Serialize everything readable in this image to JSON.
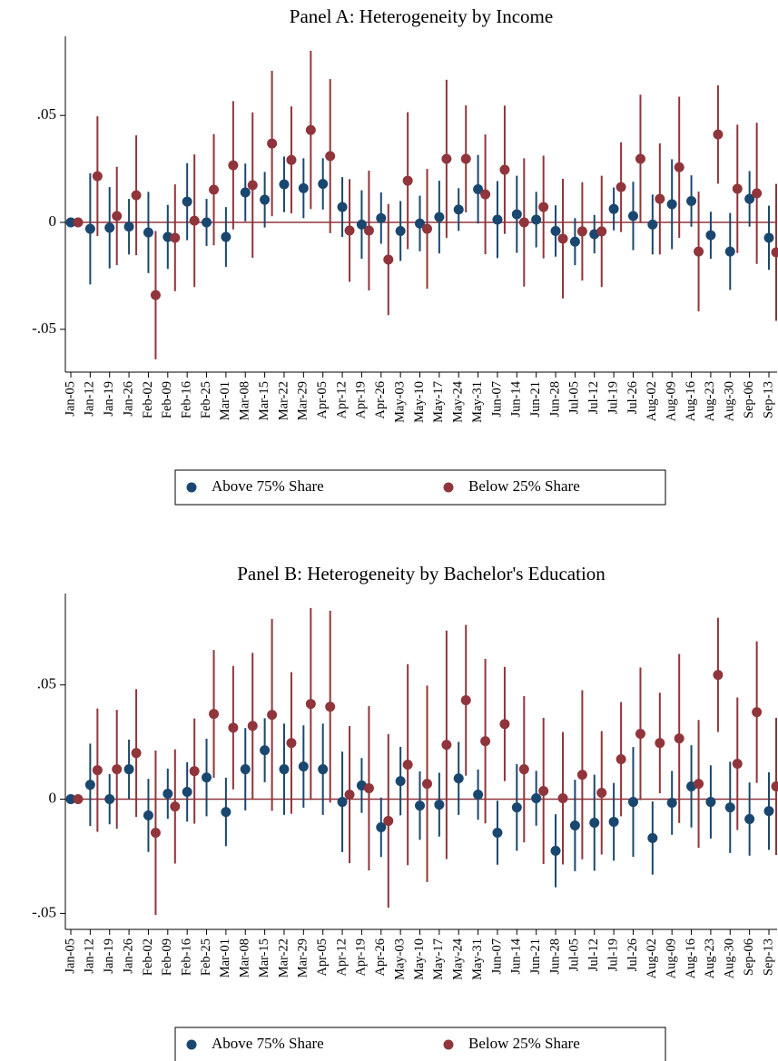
{
  "chart_data": [
    {
      "type": "errorbar",
      "title": "Panel A: Heterogeneity by Income",
      "categories": [
        "Jan-05",
        "Jan-12",
        "Jan-19",
        "Jan-26",
        "Feb-02",
        "Feb-09",
        "Feb-16",
        "Feb-25",
        "Mar-01",
        "Mar-08",
        "Mar-15",
        "Mar-22",
        "Mar-29",
        "Apr-05",
        "Apr-12",
        "Apr-19",
        "Apr-26",
        "May-03",
        "May-10",
        "May-17",
        "May-24",
        "May-31",
        "Jun-07",
        "Jun-14",
        "Jun-21",
        "Jun-28",
        "Jul-05",
        "Jul-12",
        "Jul-19",
        "Jul-26",
        "Aug-02",
        "Aug-09",
        "Aug-16",
        "Aug-23",
        "Aug-30",
        "Sep-06",
        "Sep-13"
      ],
      "series": [
        {
          "name": "Above 75% Share",
          "color": "#1a476f",
          "values": [
            0,
            -0.003,
            -0.0025,
            -0.002,
            -0.0047,
            -0.0068,
            0.0097,
            0,
            -0.0068,
            0.014,
            0.0106,
            0.0178,
            0.016,
            0.018,
            0.0072,
            -0.001,
            0.002,
            -0.004,
            -0.0005,
            0.0025,
            0.006,
            0.0155,
            0.0013,
            0.0038,
            0.0013,
            -0.004,
            -0.009,
            -0.0055,
            0.0063,
            0.003,
            -0.001,
            0.0085,
            0.01,
            -0.006,
            -0.0136,
            0.011,
            -0.0072
          ],
          "errors": [
            0,
            0.026,
            0.019,
            0.013,
            0.019,
            0.015,
            0.018,
            0.011,
            0.014,
            0.0135,
            0.013,
            0.013,
            0.014,
            0.012,
            0.014,
            0.016,
            0.012,
            0.014,
            0.013,
            0.017,
            0.01,
            0.016,
            0.018,
            0.018,
            0.013,
            0.012,
            0.011,
            0.009,
            0.01,
            0.016,
            0.014,
            0.021,
            0.012,
            0.011,
            0.018,
            0.013,
            0.015
          ]
        },
        {
          "name": "Below 25% Share",
          "color": "#90353b",
          "values": [
            0,
            0.0216,
            0.003,
            0.0127,
            -0.034,
            -0.0072,
            0.0008,
            0.0153,
            0.0267,
            0.0174,
            0.0369,
            0.0292,
            0.0432,
            0.031,
            -0.0038,
            -0.0038,
            -0.0174,
            0.0195,
            -0.003,
            0.0297,
            0.0297,
            0.0131,
            0.0246,
            0,
            0.0072,
            -0.0076,
            -0.0042,
            -0.0042,
            0.0165,
            0.0297,
            0.011,
            0.0258,
            -0.0136,
            0.0411,
            0.0157,
            0.0136,
            -0.014
          ],
          "errors": [
            0,
            0.028,
            0.023,
            0.028,
            0.03,
            0.025,
            0.031,
            0.026,
            0.03,
            0.034,
            0.034,
            0.025,
            0.037,
            0.036,
            0.024,
            0.028,
            0.026,
            0.032,
            0.028,
            0.037,
            0.025,
            0.028,
            0.03,
            0.03,
            0.024,
            0.028,
            0.023,
            0.026,
            0.021,
            0.03,
            0.026,
            0.033,
            0.028,
            0.023,
            0.03,
            0.033,
            0.032
          ]
        }
      ],
      "ylim": [
        -0.07,
        0.087
      ],
      "yticks": [
        {
          "value": -0.05,
          "label": "-.05"
        },
        0,
        {
          "value": 0.05,
          "label": ".05"
        }
      ],
      "reference_line": 0,
      "reference_color": "#90353b",
      "grid": false
    },
    {
      "type": "errorbar",
      "title": "Panel B: Heterogeneity by Bachelor's Education",
      "categories": [
        "Jan-05",
        "Jan-12",
        "Jan-19",
        "Jan-26",
        "Feb-02",
        "Feb-09",
        "Feb-16",
        "Feb-25",
        "Mar-01",
        "Mar-08",
        "Mar-15",
        "Mar-22",
        "Mar-29",
        "Apr-05",
        "Apr-12",
        "Apr-19",
        "Apr-26",
        "May-03",
        "May-10",
        "May-17",
        "May-24",
        "May-31",
        "Jun-07",
        "Jun-14",
        "Jun-21",
        "Jun-28",
        "Jul-05",
        "Jul-12",
        "Jul-19",
        "Jul-26",
        "Aug-02",
        "Aug-09",
        "Aug-16",
        "Aug-23",
        "Aug-30",
        "Sep-06",
        "Sep-13"
      ],
      "series": [
        {
          "name": "Above 75% Share",
          "color": "#1a476f",
          "values": [
            0,
            0.0063,
            0,
            0.0131,
            -0.0071,
            0.0024,
            0.0032,
            0.0095,
            -0.0056,
            0.0131,
            0.0214,
            0.0131,
            0.0143,
            0.0131,
            -0.0012,
            0.006,
            -0.0123,
            0.0079,
            -0.0028,
            -0.0024,
            0.0091,
            0.002,
            -0.0147,
            -0.0036,
            0.0004,
            -0.0226,
            -0.0115,
            -0.0103,
            -0.0099,
            -0.0012,
            -0.017,
            -0.0016,
            0.0056,
            -0.0012,
            -0.0036,
            -0.0087,
            -0.0052
          ],
          "errors": [
            0,
            0.018,
            0.011,
            0.013,
            0.016,
            0.011,
            0.013,
            0.017,
            0.015,
            0.018,
            0.014,
            0.02,
            0.018,
            0.02,
            0.022,
            0.012,
            0.013,
            0.015,
            0.015,
            0.014,
            0.016,
            0.011,
            0.014,
            0.019,
            0.012,
            0.016,
            0.02,
            0.021,
            0.017,
            0.024,
            0.016,
            0.014,
            0.018,
            0.016,
            0.02,
            0.016,
            0.017
          ]
        },
        {
          "name": "Below 25% Share",
          "color": "#90353b",
          "values": [
            0,
            0.0127,
            0.0131,
            0.0202,
            -0.0147,
            -0.0032,
            0.0123,
            0.0373,
            0.0313,
            0.0321,
            0.0369,
            0.0246,
            0.0417,
            0.0405,
            0.002,
            0.0048,
            -0.0095,
            0.0151,
            0.0067,
            0.0238,
            0.0433,
            0.0254,
            0.0329,
            0.0131,
            0.0036,
            0.0004,
            0.0107,
            0.0028,
            0.0175,
            0.0286,
            0.0246,
            0.0266,
            0.0067,
            0.0544,
            0.0155,
            0.0381,
            0.0056
          ],
          "errors": [
            0,
            0.027,
            0.026,
            0.028,
            0.036,
            0.025,
            0.023,
            0.028,
            0.027,
            0.032,
            0.042,
            0.031,
            0.042,
            0.042,
            0.03,
            0.036,
            0.038,
            0.044,
            0.043,
            0.05,
            0.033,
            0.036,
            0.025,
            0.032,
            0.032,
            0.029,
            0.037,
            0.027,
            0.025,
            0.029,
            0.022,
            0.037,
            0.028,
            0.025,
            0.029,
            0.031,
            0.03
          ]
        }
      ],
      "ylim": [
        -0.057,
        0.09
      ],
      "yticks": [
        {
          "value": -0.05,
          "label": "-.05"
        },
        0,
        {
          "value": 0.05,
          "label": ".05"
        }
      ],
      "reference_line": 0,
      "reference_color": "#90353b",
      "grid": false
    }
  ]
}
